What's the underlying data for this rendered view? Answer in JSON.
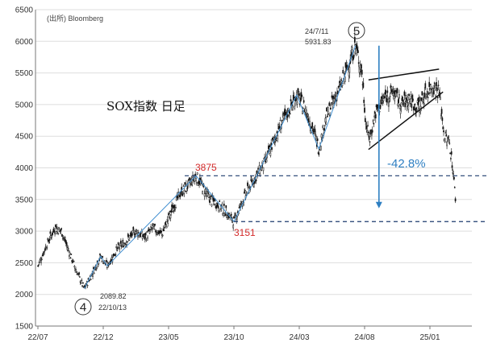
{
  "chart_data": {
    "type": "candlestick",
    "title": "SOX指数 日足",
    "source": "(出所)   Bloomberg",
    "ylim": [
      1500,
      6500
    ],
    "yticks": [
      1500,
      2000,
      2500,
      3000,
      3500,
      4000,
      4500,
      5000,
      5500,
      6000,
      6500
    ],
    "xlim_months": [
      0,
      32
    ],
    "xticks": [
      {
        "label": "22/07",
        "m": 0
      },
      {
        "label": "22/12",
        "m": 5
      },
      {
        "label": "23/05",
        "m": 10
      },
      {
        "label": "23/10",
        "m": 15
      },
      {
        "label": "24/03",
        "m": 20
      },
      {
        "label": "24/08",
        "m": 25
      },
      {
        "label": "25/01",
        "m": 30
      }
    ],
    "anchors": [
      [
        0.0,
        2450
      ],
      [
        0.7,
        2800
      ],
      [
        1.3,
        3050
      ],
      [
        1.8,
        3000
      ],
      [
        2.3,
        2720
      ],
      [
        2.8,
        2450
      ],
      [
        3.3,
        2200
      ],
      [
        3.55,
        2090
      ],
      [
        4.2,
        2350
      ],
      [
        4.8,
        2600
      ],
      [
        5.3,
        2450
      ],
      [
        6.0,
        2700
      ],
      [
        6.8,
        2850
      ],
      [
        7.5,
        3000
      ],
      [
        8.2,
        2900
      ],
      [
        8.8,
        3050
      ],
      [
        9.5,
        2950
      ],
      [
        10.3,
        3350
      ],
      [
        10.9,
        3600
      ],
      [
        11.5,
        3720
      ],
      [
        12.1,
        3875
      ],
      [
        12.6,
        3700
      ],
      [
        13.2,
        3500
      ],
      [
        13.9,
        3400
      ],
      [
        14.5,
        3280
      ],
      [
        15.0,
        3151
      ],
      [
        15.6,
        3450
      ],
      [
        16.2,
        3700
      ],
      [
        16.8,
        3900
      ],
      [
        17.4,
        4100
      ],
      [
        18.0,
        4400
      ],
      [
        18.6,
        4700
      ],
      [
        19.2,
        4900
      ],
      [
        19.8,
        5150
      ],
      [
        20.4,
        4950
      ],
      [
        21.0,
        4650
      ],
      [
        21.5,
        4300
      ],
      [
        22.0,
        4750
      ],
      [
        22.6,
        5050
      ],
      [
        23.2,
        5300
      ],
      [
        23.8,
        5650
      ],
      [
        24.3,
        5931
      ],
      [
        24.8,
        5500
      ],
      [
        25.1,
        4700
      ],
      [
        25.4,
        4450
      ],
      [
        25.8,
        4850
      ],
      [
        26.5,
        5100
      ],
      [
        27.2,
        5200
      ],
      [
        27.8,
        5000
      ],
      [
        28.4,
        5100
      ],
      [
        29.0,
        4950
      ],
      [
        29.6,
        5150
      ],
      [
        30.2,
        5300
      ],
      [
        30.7,
        5200
      ],
      [
        31.1,
        4500
      ],
      [
        31.5,
        4400
      ],
      [
        31.8,
        3900
      ],
      [
        32.0,
        3400
      ]
    ],
    "annotations": {
      "high": {
        "date": "24/7/11",
        "value": "5931.83",
        "wave": "5"
      },
      "low": {
        "date": "22/10/13",
        "value": "2089.82",
        "wave": "4"
      },
      "level_high": "3875",
      "level_low": "3151",
      "drop": "-42.8%"
    }
  }
}
